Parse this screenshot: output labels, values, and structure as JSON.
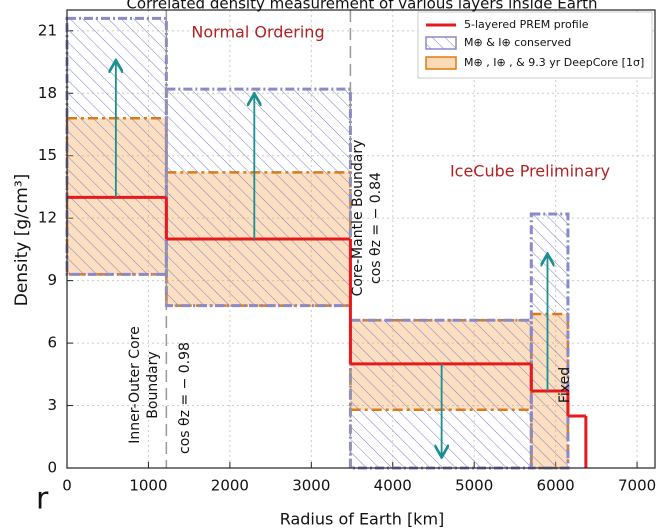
{
  "chart_data": {
    "type": "step",
    "title": "Correlated density measurement of various layers inside Earth",
    "xlabel": "Radius of Earth [km]",
    "ylabel": "Density [g/cm³]",
    "xlim": [
      0,
      7220
    ],
    "ylim": [
      0,
      22
    ],
    "xticks": [
      0,
      1000,
      2000,
      3000,
      4000,
      5000,
      6000,
      7000
    ],
    "yticks": [
      0,
      3,
      6,
      9,
      12,
      15,
      18,
      21
    ],
    "grid": true,
    "series": [
      {
        "name": "5-layered PREM profile",
        "color": "#e8191c",
        "edges": [
          0,
          1220,
          3480,
          5701,
          6151,
          6371
        ],
        "values": [
          13,
          11,
          5,
          3.7,
          2.5
        ]
      }
    ],
    "bands": [
      {
        "name": "M⊕ , I⊕ , & 9.3 yr DeepCore [1σ]",
        "color": "#f5a24a",
        "edge_color": "#e07b10",
        "edges": [
          0,
          1220,
          3480,
          5701,
          6151
        ],
        "low": [
          9.3,
          7.8,
          2.8,
          0
        ],
        "high": [
          16.8,
          14.2,
          7.1,
          7.4
        ]
      },
      {
        "name": "M⊕ & I⊕ conserved",
        "color": "#7070c0",
        "edge_color": "#8a8ac8",
        "edges": [
          0,
          1220,
          3480,
          5701,
          6151
        ],
        "low": [
          9.3,
          7.8,
          0,
          0
        ],
        "high": [
          21.6,
          18.2,
          7.1,
          12.2
        ]
      }
    ],
    "arrows": {
      "color": "#1a8f8f",
      "x": [
        600,
        2300,
        4600,
        5900
      ],
      "from": [
        13,
        11,
        5,
        3.7
      ],
      "to": [
        19.5,
        17.9,
        0.6,
        10.2
      ]
    },
    "boundaries": [
      1220,
      3480
    ],
    "annotations": {
      "ordering": "Normal Ordering",
      "preliminary": "IceCube Preliminary",
      "inner_outer": [
        "Inner-Outer Core",
        "Boundary"
      ],
      "cos_inner": "cos θz = − 0.98",
      "core_mantle": "Core-Mantle Boundary",
      "cos_mantle": "cos θz = − 0.84",
      "fixed": "Fixed"
    },
    "fragment": "r"
  }
}
